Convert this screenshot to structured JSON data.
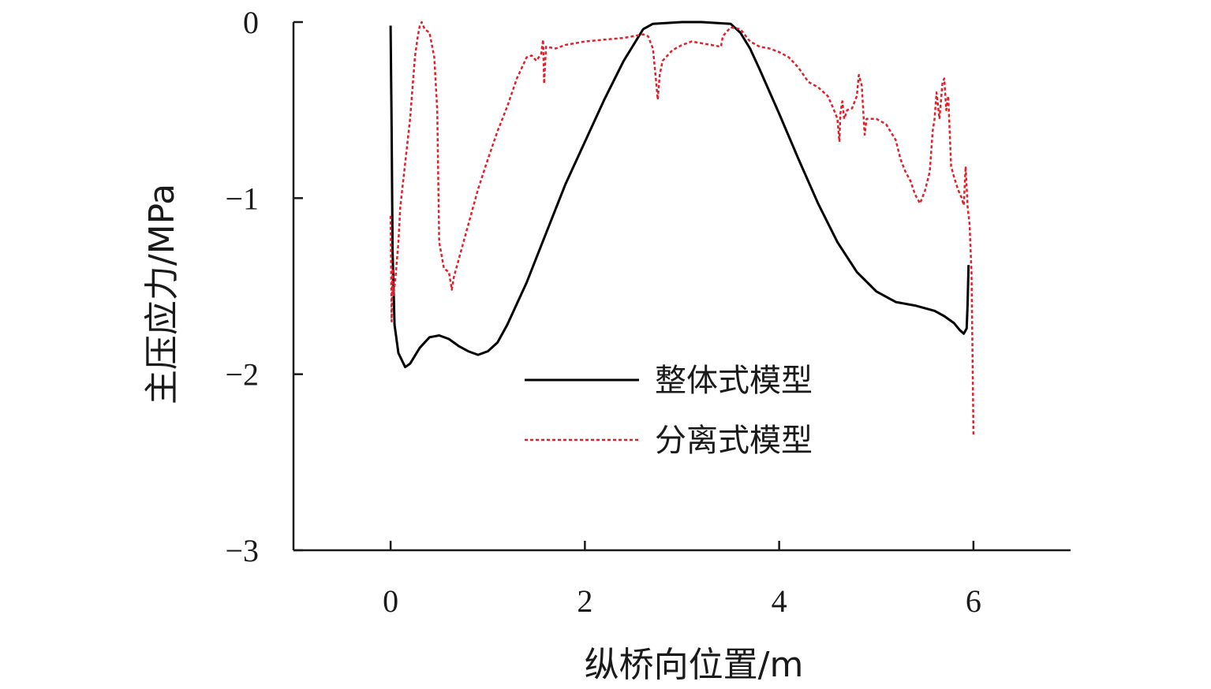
{
  "chart_data": {
    "type": "line",
    "xlabel": "纵桥向位置/m",
    "ylabel": "主压应力/MPa",
    "xlim": [
      -1,
      7
    ],
    "ylim": [
      -3,
      0
    ],
    "xticks": [
      0,
      2,
      4,
      6
    ],
    "yticks": [
      0,
      -1,
      -2,
      -3
    ],
    "xtick_labels": [
      "0",
      "2",
      "4",
      "6"
    ],
    "ytick_labels": [
      "0",
      "−1",
      "−2",
      "−3"
    ],
    "grid": false,
    "legend_position": "center-right",
    "series": [
      {
        "name": "整体式模型",
        "color": "#000000",
        "style": "solid",
        "points": [
          [
            0.0,
            -0.02
          ],
          [
            0.01,
            -0.6
          ],
          [
            0.02,
            -1.3
          ],
          [
            0.04,
            -1.72
          ],
          [
            0.08,
            -1.88
          ],
          [
            0.15,
            -1.96
          ],
          [
            0.2,
            -1.94
          ],
          [
            0.3,
            -1.85
          ],
          [
            0.4,
            -1.79
          ],
          [
            0.5,
            -1.78
          ],
          [
            0.6,
            -1.8
          ],
          [
            0.7,
            -1.84
          ],
          [
            0.8,
            -1.87
          ],
          [
            0.9,
            -1.89
          ],
          [
            1.0,
            -1.87
          ],
          [
            1.1,
            -1.82
          ],
          [
            1.2,
            -1.72
          ],
          [
            1.4,
            -1.48
          ],
          [
            1.6,
            -1.2
          ],
          [
            1.8,
            -0.92
          ],
          [
            2.0,
            -0.68
          ],
          [
            2.2,
            -0.44
          ],
          [
            2.4,
            -0.22
          ],
          [
            2.6,
            -0.04
          ],
          [
            2.7,
            -0.01
          ],
          [
            3.0,
            0.0
          ],
          [
            3.2,
            0.0
          ],
          [
            3.5,
            -0.01
          ],
          [
            3.6,
            -0.06
          ],
          [
            3.7,
            -0.15
          ],
          [
            3.8,
            -0.27
          ],
          [
            4.0,
            -0.52
          ],
          [
            4.2,
            -0.78
          ],
          [
            4.4,
            -1.03
          ],
          [
            4.6,
            -1.25
          ],
          [
            4.8,
            -1.42
          ],
          [
            5.0,
            -1.53
          ],
          [
            5.2,
            -1.59
          ],
          [
            5.4,
            -1.61
          ],
          [
            5.6,
            -1.64
          ],
          [
            5.7,
            -1.67
          ],
          [
            5.8,
            -1.71
          ],
          [
            5.86,
            -1.75
          ],
          [
            5.9,
            -1.77
          ],
          [
            5.93,
            -1.74
          ],
          [
            5.94,
            -1.6
          ],
          [
            5.95,
            -1.38
          ]
        ]
      },
      {
        "name": "分离式模型",
        "color": "#e0202a",
        "style": "dotted",
        "points": [
          [
            0.0,
            -1.1
          ],
          [
            0.01,
            -1.7
          ],
          [
            0.02,
            -1.4
          ],
          [
            0.03,
            -1.55
          ],
          [
            0.05,
            -1.45
          ],
          [
            0.08,
            -1.25
          ],
          [
            0.1,
            -1.05
          ],
          [
            0.15,
            -0.8
          ],
          [
            0.2,
            -0.55
          ],
          [
            0.25,
            -0.2
          ],
          [
            0.28,
            -0.08
          ],
          [
            0.3,
            -0.02
          ],
          [
            0.32,
            0.0
          ],
          [
            0.35,
            -0.04
          ],
          [
            0.4,
            -0.06
          ],
          [
            0.45,
            -0.2
          ],
          [
            0.48,
            -0.5
          ],
          [
            0.5,
            -1.25
          ],
          [
            0.55,
            -1.4
          ],
          [
            0.6,
            -1.42
          ],
          [
            0.63,
            -1.52
          ],
          [
            0.65,
            -1.45
          ],
          [
            0.7,
            -1.35
          ],
          [
            0.8,
            -1.15
          ],
          [
            0.9,
            -0.95
          ],
          [
            1.0,
            -0.78
          ],
          [
            1.1,
            -0.62
          ],
          [
            1.2,
            -0.48
          ],
          [
            1.3,
            -0.32
          ],
          [
            1.4,
            -0.2
          ],
          [
            1.45,
            -0.19
          ],
          [
            1.5,
            -0.22
          ],
          [
            1.55,
            -0.18
          ],
          [
            1.57,
            -0.1
          ],
          [
            1.58,
            -0.35
          ],
          [
            1.6,
            -0.14
          ],
          [
            1.7,
            -0.15
          ],
          [
            1.8,
            -0.13
          ],
          [
            1.9,
            -0.12
          ],
          [
            2.0,
            -0.11
          ],
          [
            2.2,
            -0.1
          ],
          [
            2.4,
            -0.09
          ],
          [
            2.5,
            -0.08
          ],
          [
            2.6,
            -0.07
          ],
          [
            2.65,
            -0.08
          ],
          [
            2.7,
            -0.15
          ],
          [
            2.73,
            -0.32
          ],
          [
            2.75,
            -0.44
          ],
          [
            2.77,
            -0.3
          ],
          [
            2.8,
            -0.22
          ],
          [
            2.9,
            -0.16
          ],
          [
            3.0,
            -0.13
          ],
          [
            3.1,
            -0.11
          ],
          [
            3.2,
            -0.12
          ],
          [
            3.3,
            -0.13
          ],
          [
            3.4,
            -0.14
          ],
          [
            3.42,
            -0.08
          ],
          [
            3.5,
            -0.03
          ],
          [
            3.6,
            -0.04
          ],
          [
            3.7,
            -0.11
          ],
          [
            3.8,
            -0.14
          ],
          [
            3.9,
            -0.15
          ],
          [
            4.0,
            -0.17
          ],
          [
            4.1,
            -0.2
          ],
          [
            4.2,
            -0.26
          ],
          [
            4.3,
            -0.34
          ],
          [
            4.4,
            -0.37
          ],
          [
            4.5,
            -0.42
          ],
          [
            4.55,
            -0.48
          ],
          [
            4.6,
            -0.55
          ],
          [
            4.62,
            -0.68
          ],
          [
            4.63,
            -0.52
          ],
          [
            4.65,
            -0.45
          ],
          [
            4.67,
            -0.55
          ],
          [
            4.7,
            -0.5
          ],
          [
            4.75,
            -0.49
          ],
          [
            4.8,
            -0.42
          ],
          [
            4.82,
            -0.3
          ],
          [
            4.85,
            -0.36
          ],
          [
            4.88,
            -0.64
          ],
          [
            4.9,
            -0.55
          ],
          [
            5.0,
            -0.55
          ],
          [
            5.1,
            -0.58
          ],
          [
            5.2,
            -0.67
          ],
          [
            5.25,
            -0.78
          ],
          [
            5.3,
            -0.85
          ],
          [
            5.35,
            -0.9
          ],
          [
            5.4,
            -0.98
          ],
          [
            5.45,
            -1.03
          ],
          [
            5.5,
            -0.96
          ],
          [
            5.55,
            -0.85
          ],
          [
            5.58,
            -0.62
          ],
          [
            5.6,
            -0.55
          ],
          [
            5.62,
            -0.4
          ],
          [
            5.65,
            -0.55
          ],
          [
            5.68,
            -0.35
          ],
          [
            5.7,
            -0.32
          ],
          [
            5.72,
            -0.5
          ],
          [
            5.74,
            -0.42
          ],
          [
            5.77,
            -0.82
          ],
          [
            5.8,
            -0.88
          ],
          [
            5.84,
            -0.95
          ],
          [
            5.88,
            -1.0
          ],
          [
            5.9,
            -1.04
          ],
          [
            5.92,
            -0.82
          ],
          [
            5.94,
            -1.05
          ],
          [
            5.96,
            -1.15
          ],
          [
            5.98,
            -1.42
          ],
          [
            5.99,
            -1.85
          ],
          [
            6.0,
            -2.35
          ]
        ]
      }
    ]
  }
}
